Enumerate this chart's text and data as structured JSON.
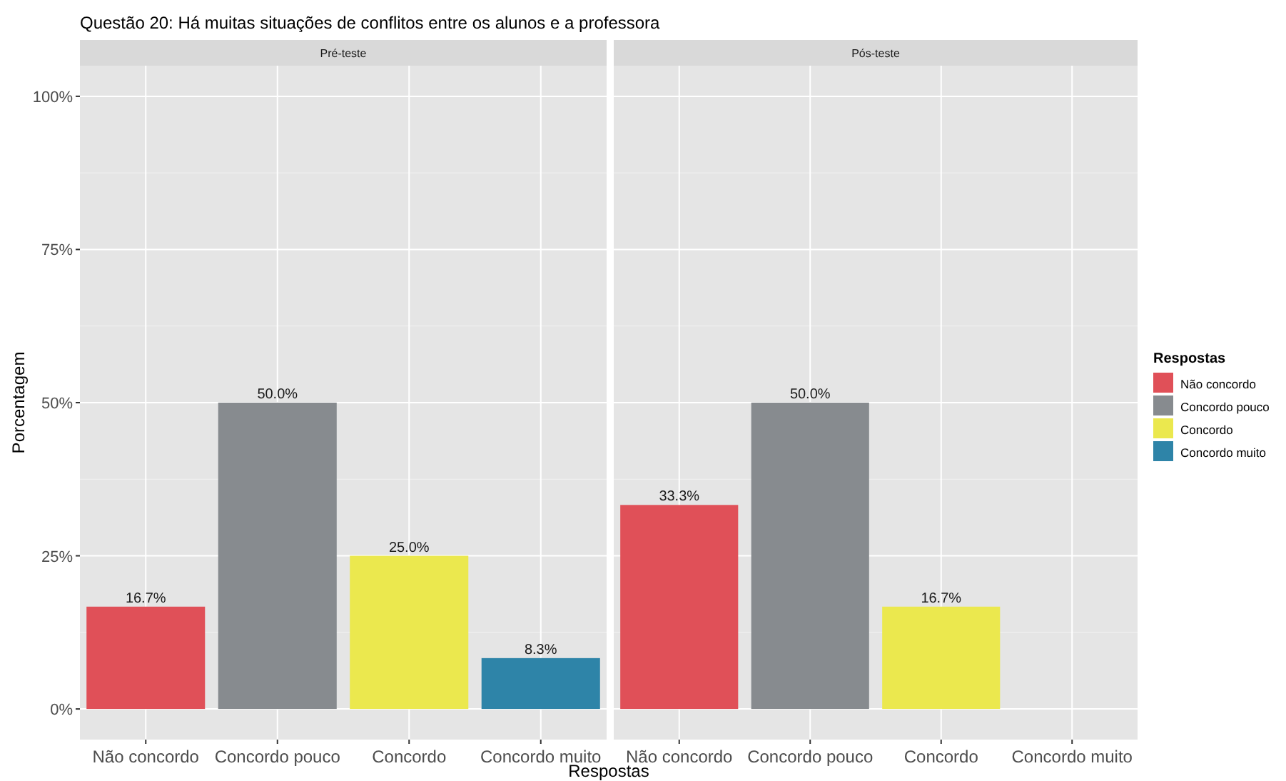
{
  "chart_data": [
    {
      "type": "bar",
      "title": "Questão 20: Há muitas situações de conflitos entre os alunos e a professora",
      "subtitle": "Pré-teste",
      "xlabel": "Respostas",
      "ylabel": "Porcentagem",
      "categories": [
        "Não concordo",
        "Concordo pouco",
        "Concordo",
        "Concordo muito"
      ],
      "series": [
        {
          "color": "#e05058",
          "values": [
            16.7,
            null,
            null,
            null
          ],
          "value_labels": [
            "16.7%",
            null,
            null,
            null
          ]
        },
        {
          "color": "#878b8f",
          "values": [
            null,
            50.0,
            null,
            null
          ],
          "value_labels": [
            null,
            "50.0%",
            null,
            null
          ]
        },
        {
          "color": "#ebe84e",
          "values": [
            null,
            null,
            25.0,
            null
          ],
          "value_labels": [
            null,
            null,
            "25.0%",
            null
          ]
        },
        {
          "color": "#2e84a8",
          "values": [
            null,
            null,
            null,
            8.3
          ],
          "value_labels": [
            null,
            null,
            null,
            "8.3%"
          ]
        }
      ],
      "ylim": [
        -5,
        105
      ],
      "yticks": [
        {
          "value": 0,
          "label": "0%"
        },
        {
          "value": 25,
          "label": "25%"
        },
        {
          "value": 50,
          "label": "50%"
        },
        {
          "value": 75,
          "label": "75%"
        },
        {
          "value": 100,
          "label": "100%"
        }
      ],
      "grid": true,
      "legend": false
    },
    {
      "type": "bar",
      "subtitle": "Pós-teste",
      "legend_title": "Respostas",
      "categories": [
        "Não concordo",
        "Concordo pouco",
        "Concordo",
        "Concordo muito"
      ],
      "series": [
        {
          "name": "Não concordo",
          "color": "#e05058",
          "values": [
            33.3,
            null,
            null,
            null
          ],
          "value_labels": [
            "33.3%",
            null,
            null,
            null
          ]
        },
        {
          "name": "Concordo pouco",
          "color": "#878b8f",
          "values": [
            null,
            50.0,
            null,
            null
          ],
          "value_labels": [
            null,
            "50.0%",
            null,
            null
          ]
        },
        {
          "name": "Concordo",
          "color": "#ebe84e",
          "values": [
            null,
            null,
            16.7,
            null
          ],
          "value_labels": [
            null,
            null,
            "16.7%",
            null
          ]
        },
        {
          "name": "Concordo muito",
          "color": "#2e84a8",
          "values": [
            null,
            null,
            null,
            null
          ]
        }
      ],
      "ylim": [
        -5,
        105
      ],
      "yticks": [
        {
          "value": 0,
          "label": null
        },
        {
          "value": 25,
          "label": null
        },
        {
          "value": 50,
          "label": null
        },
        {
          "value": 75,
          "label": null
        },
        {
          "value": 100,
          "label": null
        }
      ],
      "tick_labels": "x",
      "grid": true,
      "legend": "right"
    }
  ]
}
